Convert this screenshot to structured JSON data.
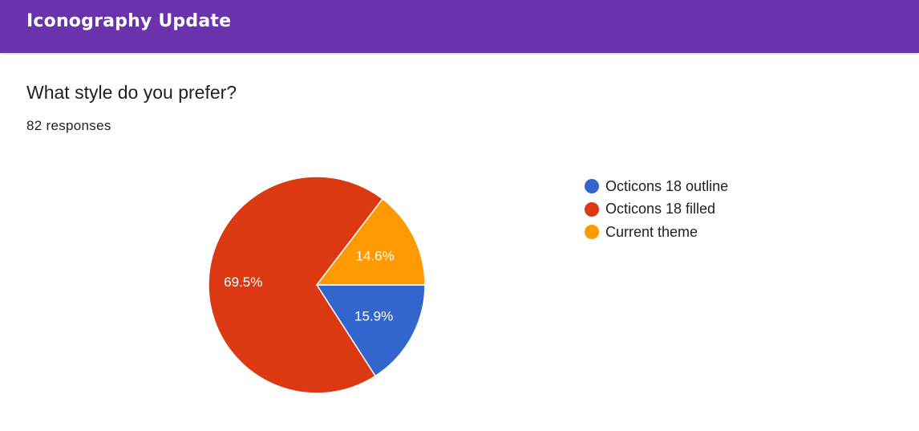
{
  "header": {
    "title": "Iconography Update"
  },
  "question": {
    "text": "What style do you prefer?",
    "responses": "82 responses"
  },
  "chart_data": {
    "type": "pie",
    "title": "",
    "series": [
      {
        "name": "Octicons 18 outline",
        "value": 15.9,
        "label": "15.9%",
        "color": "#3366cc"
      },
      {
        "name": "Octicons 18 filled",
        "value": 69.5,
        "label": "69.5%",
        "color": "#dc3912"
      },
      {
        "name": "Current theme",
        "value": 14.6,
        "label": "14.6%",
        "color": "#ff9900"
      }
    ],
    "legend_position": "right"
  }
}
